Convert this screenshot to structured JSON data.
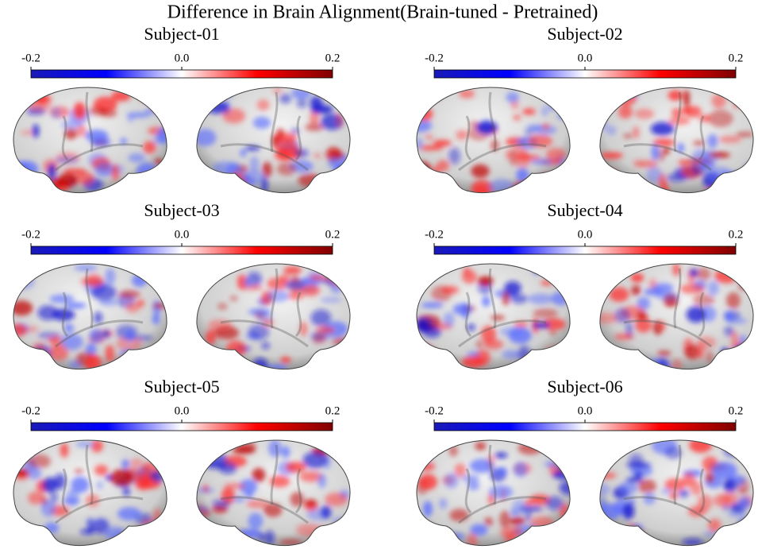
{
  "title": "Difference in Brain Alignment(Brain-tuned - Pretrained)",
  "panels": [
    {
      "label": "Subject-01",
      "colorbar": {
        "lim": [
          -0.2,
          0.2
        ],
        "ticks": [
          -0.2,
          {
            "value": 0,
            "label": "0.0"
          },
          0.2
        ]
      }
    },
    {
      "label": "Subject-02",
      "colorbar": {
        "lim": [
          -0.2,
          0.2
        ],
        "ticks": [
          -0.2,
          {
            "value": 0,
            "label": "0.0"
          },
          0.2
        ]
      }
    },
    {
      "label": "Subject-03",
      "colorbar": {
        "lim": [
          -0.2,
          0.2
        ],
        "ticks": [
          -0.2,
          {
            "value": 0,
            "label": "0.0"
          },
          0.2
        ]
      }
    },
    {
      "label": "Subject-04",
      "colorbar": {
        "lim": [
          -0.2,
          0.2
        ],
        "ticks": [
          -0.2,
          {
            "value": 0,
            "label": "0.0"
          },
          0.2
        ]
      }
    },
    {
      "label": "Subject-05",
      "colorbar": {
        "lim": [
          -0.2,
          0.2
        ],
        "ticks": [
          -0.2,
          {
            "value": 0,
            "label": "0.0"
          },
          0.2
        ]
      }
    },
    {
      "label": "Subject-06",
      "colorbar": {
        "lim": [
          -0.2,
          0.2
        ],
        "ticks": [
          -0.2,
          {
            "value": 0,
            "label": "0.0"
          },
          0.2
        ]
      }
    }
  ]
}
